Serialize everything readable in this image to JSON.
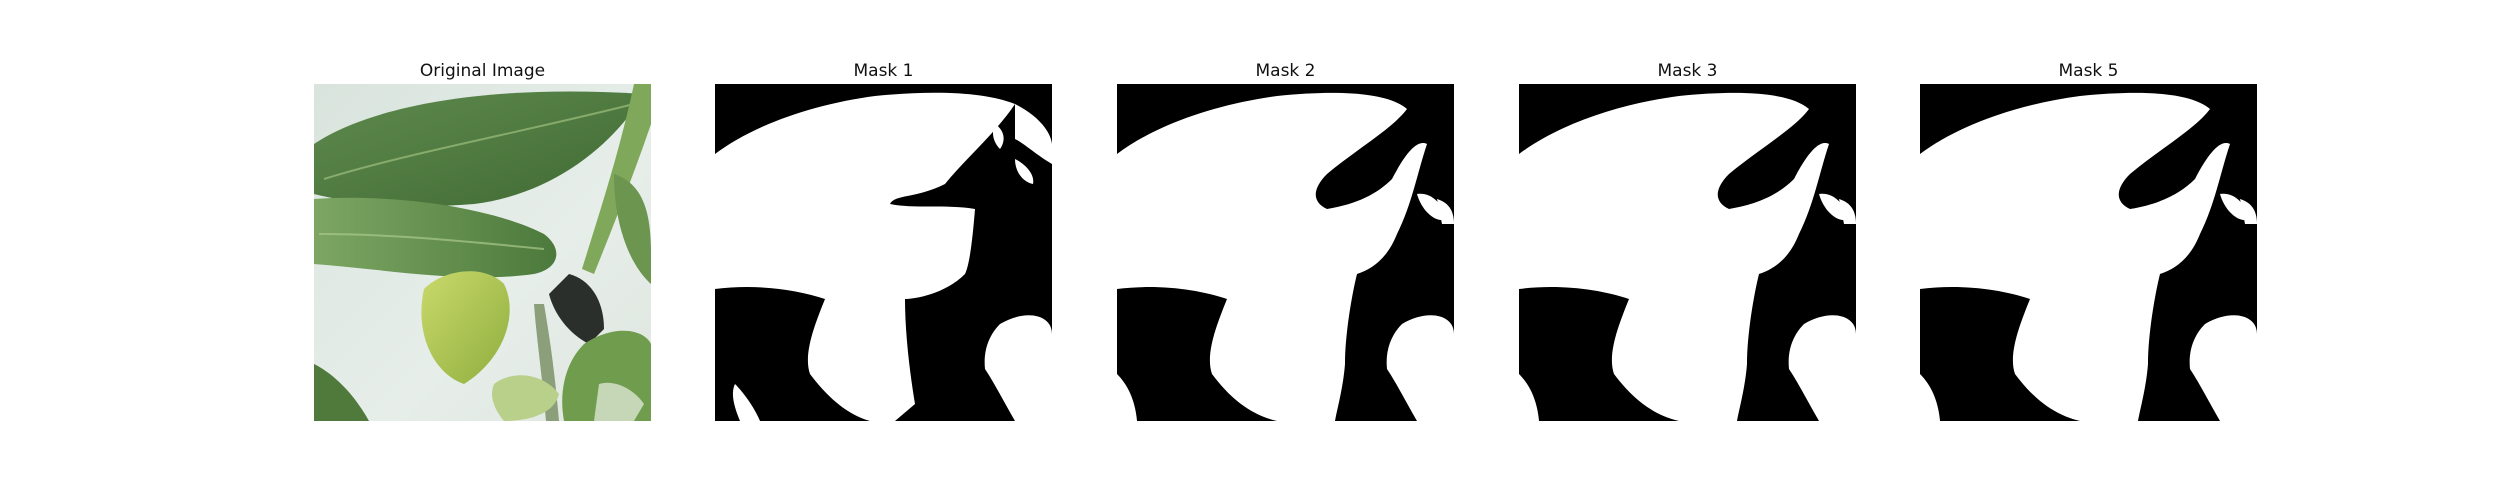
{
  "figure": {
    "panels": [
      {
        "id": "original",
        "title": "Original Image"
      },
      {
        "id": "mask-1",
        "title": "Mask 1"
      },
      {
        "id": "mask-2",
        "title": "Mask 2"
      },
      {
        "id": "mask-3",
        "title": "Mask 3"
      },
      {
        "id": "mask-5",
        "title": "Mask 5"
      }
    ]
  }
}
